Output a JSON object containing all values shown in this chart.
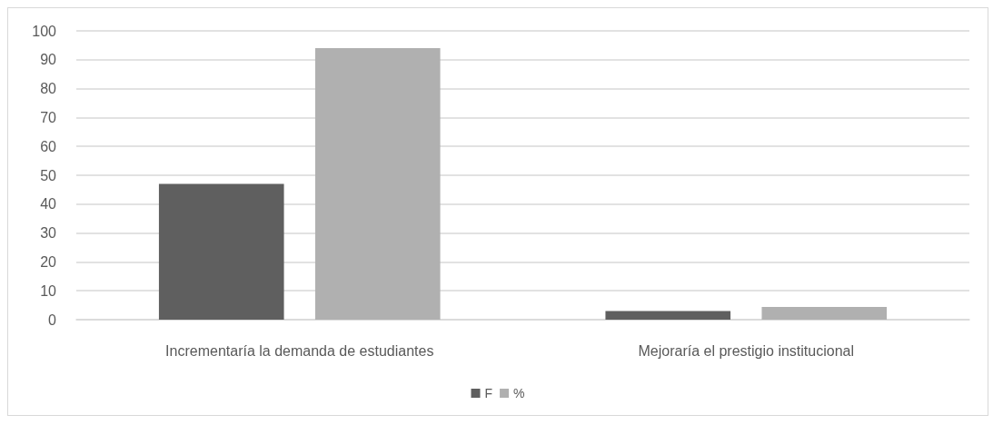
{
  "chart_data": {
    "type": "bar",
    "categories": [
      "Incrementaría la demanda de estudiantes",
      "Mejoraría el prestigio institucional"
    ],
    "series": [
      {
        "name": "F",
        "color": "#5f5f5f",
        "values": [
          47,
          3
        ]
      },
      {
        "name": "%",
        "color": "#b0b0b0",
        "values": [
          94,
          4.4
        ]
      }
    ],
    "ylim": [
      0,
      100
    ],
    "yticks": [
      0,
      10,
      20,
      30,
      40,
      50,
      60,
      70,
      80,
      90,
      100
    ],
    "grid": "y",
    "legend": "bottom"
  }
}
